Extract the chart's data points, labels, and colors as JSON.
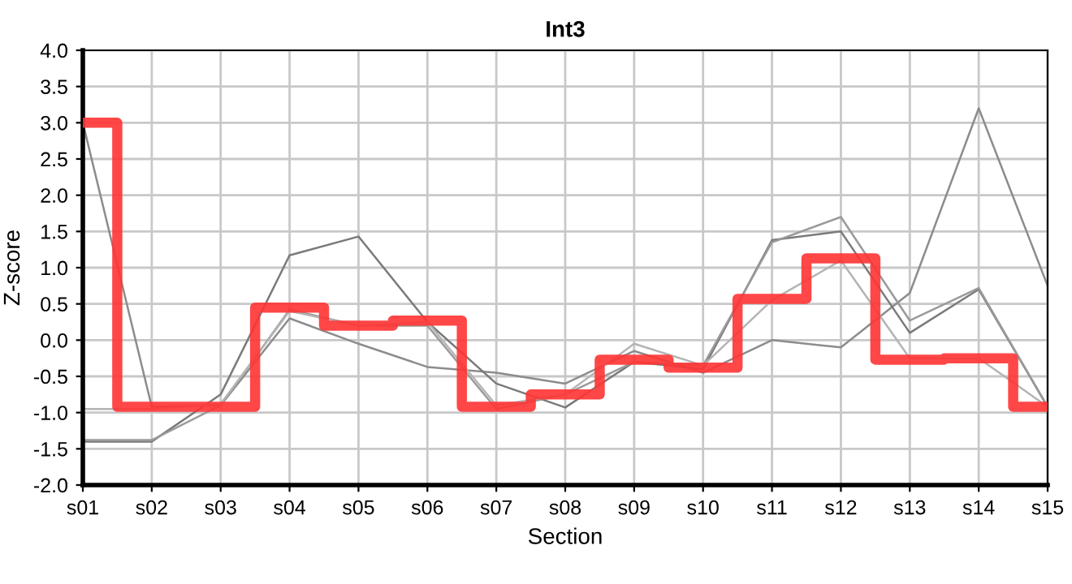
{
  "chart_data": {
    "type": "line",
    "title": "Int3",
    "xlabel": "Section",
    "ylabel": "Z-score",
    "categories": [
      "s01",
      "s02",
      "s03",
      "s04",
      "s05",
      "s06",
      "s07",
      "s08",
      "s09",
      "s10",
      "s11",
      "s12",
      "s13",
      "s14",
      "s15"
    ],
    "series": [
      {
        "color": "#8c8c8c",
        "values": [
          3.0,
          -0.92,
          -0.9,
          0.3,
          -0.05,
          -0.37,
          -0.45,
          -0.6,
          -0.15,
          -0.45,
          0.0,
          -0.1,
          0.65,
          3.2,
          0.75
        ]
      },
      {
        "color": "#7a7a7a",
        "values": [
          -1.4,
          -1.4,
          -0.75,
          1.17,
          1.43,
          0.25,
          -0.6,
          -0.93,
          -0.3,
          -0.4,
          1.38,
          1.5,
          0.1,
          0.7,
          -0.92
        ]
      },
      {
        "color": "#9a9a9a",
        "values": [
          -1.38,
          -1.38,
          -0.9,
          0.42,
          0.2,
          0.2,
          -0.95,
          -0.75,
          -0.3,
          -0.35,
          1.35,
          1.7,
          0.27,
          0.72,
          -0.92
        ]
      },
      {
        "color": "#b4b4b4",
        "values": [
          -0.95,
          -0.95,
          -0.88,
          0.4,
          0.2,
          0.25,
          -0.9,
          -0.75,
          -0.05,
          -0.35,
          0.55,
          1.1,
          -0.25,
          -0.25,
          -0.92
        ]
      },
      {
        "type": "step",
        "color": "#ff3333",
        "values": [
          3.0,
          -0.92,
          -0.92,
          0.45,
          0.2,
          0.27,
          -0.92,
          -0.75,
          -0.27,
          -0.38,
          0.57,
          1.13,
          -0.27,
          -0.25,
          -0.92
        ]
      }
    ],
    "ylim": [
      -2.0,
      4.0
    ],
    "yticks": [
      {
        "value": -2.0,
        "label": "-2.0"
      },
      {
        "value": -1.5,
        "label": "-1.5"
      },
      {
        "value": -1.0,
        "label": "-1.0"
      },
      {
        "value": -0.5,
        "label": "-0.5"
      },
      {
        "value": 0.0,
        "label": "0.0"
      },
      {
        "value": 0.5,
        "label": "0.5"
      },
      {
        "value": 1.0,
        "label": "1.0"
      },
      {
        "value": 1.5,
        "label": "1.5"
      },
      {
        "value": 2.0,
        "label": "2.0"
      },
      {
        "value": 2.5,
        "label": "2.5"
      },
      {
        "value": 3.0,
        "label": "3.0"
      },
      {
        "value": 3.5,
        "label": "3.5"
      },
      {
        "value": 4.0,
        "label": "4.0"
      }
    ],
    "grid": true,
    "marker": "none"
  }
}
